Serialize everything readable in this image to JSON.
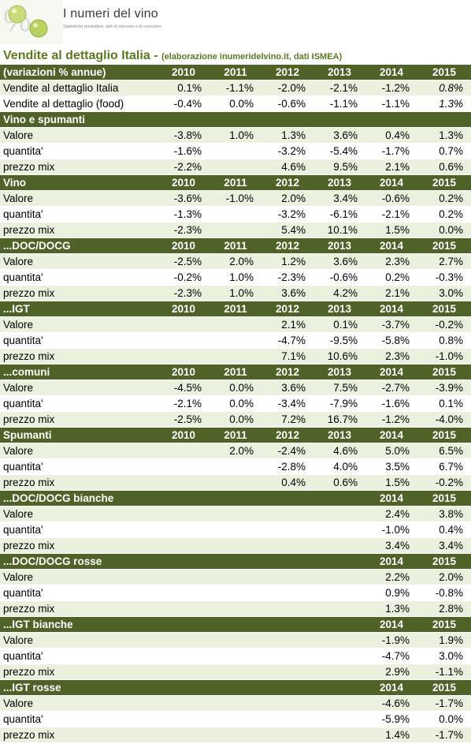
{
  "brand": {
    "name": "I numeri del vino",
    "tagline": "Statistiche produttive, dati di mercato e di consumo."
  },
  "title": {
    "main": "Vendite al dettaglio Italia - ",
    "sub": "(elaborazione inumeridelvino.it, dati ISMEA)"
  },
  "colors": {
    "header_bg": "#4f6228",
    "band_bg": "#ebf1de",
    "title_green": "#5b7a1e"
  },
  "table": {
    "rows": [
      {
        "type": "header",
        "label": "(variazioni % annue)",
        "cells": [
          "2010",
          "2011",
          "2012",
          "2013",
          "2014",
          "2015"
        ]
      },
      {
        "type": "data",
        "label": "Vendite al dettaglio Italia",
        "cells": [
          "0.1%",
          "-1.1%",
          "-2.0%",
          "-2.1%",
          "-1.2%",
          "0.8%"
        ],
        "italic_last": true
      },
      {
        "type": "data",
        "label": "Vendite al dettaglio (food)",
        "cells": [
          "-0.4%",
          "0.0%",
          "-0.6%",
          "-1.1%",
          "-1.1%",
          "1.3%"
        ],
        "italic_last": true
      },
      {
        "type": "header",
        "label": "Vino e spumanti",
        "cells": [
          "",
          "",
          "",
          "",
          "",
          ""
        ]
      },
      {
        "type": "data",
        "label": "Valore",
        "cells": [
          "-3.8%",
          "1.0%",
          "1.3%",
          "3.6%",
          "0.4%",
          "1.3%"
        ]
      },
      {
        "type": "data",
        "label": "quantita'",
        "cells": [
          "-1.6%",
          "",
          "-3.2%",
          "-5.4%",
          "-1.7%",
          "0.7%"
        ]
      },
      {
        "type": "data",
        "label": "prezzo mix",
        "cells": [
          "-2.2%",
          "",
          "4.6%",
          "9.5%",
          "2.1%",
          "0.6%"
        ]
      },
      {
        "type": "header",
        "label": "Vino",
        "cells": [
          "2010",
          "2011",
          "2012",
          "2013",
          "2014",
          "2015"
        ]
      },
      {
        "type": "data",
        "label": "Valore",
        "cells": [
          "-3.6%",
          "-1.0%",
          "2.0%",
          "3.4%",
          "-0.6%",
          "0.2%"
        ]
      },
      {
        "type": "data",
        "label": "quantita'",
        "cells": [
          "-1.3%",
          "",
          "-3.2%",
          "-6.1%",
          "-2.1%",
          "0.2%"
        ]
      },
      {
        "type": "data",
        "label": "prezzo mix",
        "cells": [
          "-2.3%",
          "",
          "5.4%",
          "10.1%",
          "1.5%",
          "0.0%"
        ]
      },
      {
        "type": "header",
        "label": "...DOC/DOCG",
        "cells": [
          "2010",
          "2011",
          "2012",
          "2013",
          "2014",
          "2015"
        ]
      },
      {
        "type": "data",
        "label": "Valore",
        "cells": [
          "-2.5%",
          "2.0%",
          "1.2%",
          "3.6%",
          "2.3%",
          "2.7%"
        ]
      },
      {
        "type": "data",
        "label": "quantita'",
        "cells": [
          "-0.2%",
          "1.0%",
          "-2.3%",
          "-0.6%",
          "0.2%",
          "-0.3%"
        ]
      },
      {
        "type": "data",
        "label": "prezzo mix",
        "cells": [
          "-2.3%",
          "1.0%",
          "3.6%",
          "4.2%",
          "2.1%",
          "3.0%"
        ]
      },
      {
        "type": "header",
        "label": "...IGT",
        "cells": [
          "2010",
          "2011",
          "2012",
          "2013",
          "2014",
          "2015"
        ]
      },
      {
        "type": "data",
        "label": "Valore",
        "cells": [
          "",
          "",
          "2.1%",
          "0.1%",
          "-3.7%",
          "-0.2%"
        ]
      },
      {
        "type": "data",
        "label": "quantita'",
        "cells": [
          "",
          "",
          "-4.7%",
          "-9.5%",
          "-5.8%",
          "0.8%"
        ]
      },
      {
        "type": "data",
        "label": "prezzo mix",
        "cells": [
          "",
          "",
          "7.1%",
          "10.6%",
          "2.3%",
          "-1.0%"
        ]
      },
      {
        "type": "header",
        "label": "...comuni",
        "cells": [
          "2010",
          "2011",
          "2012",
          "2013",
          "2014",
          "2015"
        ]
      },
      {
        "type": "data",
        "label": "Valore",
        "cells": [
          "-4.5%",
          "0.0%",
          "3.6%",
          "7.5%",
          "-2.7%",
          "-3.9%"
        ]
      },
      {
        "type": "data",
        "label": "quantita'",
        "cells": [
          "-2.1%",
          "0.0%",
          "-3.4%",
          "-7.9%",
          "-1.6%",
          "0.1%"
        ]
      },
      {
        "type": "data",
        "label": "prezzo mix",
        "cells": [
          "-2.5%",
          "0.0%",
          "7.2%",
          "16.7%",
          "-1.2%",
          "-4.0%"
        ]
      },
      {
        "type": "header",
        "label": "Spumanti",
        "cells": [
          "2010",
          "2011",
          "2012",
          "2013",
          "2014",
          "2015"
        ]
      },
      {
        "type": "data",
        "label": "Valore",
        "cells": [
          "",
          "2.0%",
          "-2.4%",
          "4.6%",
          "5.0%",
          "6.5%"
        ]
      },
      {
        "type": "data",
        "label": "quantita'",
        "cells": [
          "",
          "",
          "-2.8%",
          "4.0%",
          "3.5%",
          "6.7%"
        ]
      },
      {
        "type": "data",
        "label": "prezzo mix",
        "cells": [
          "",
          "",
          "0.4%",
          "0.6%",
          "1.5%",
          "-0.2%"
        ]
      },
      {
        "type": "header",
        "label": "...DOC/DOCG bianche",
        "cells": [
          "",
          "",
          "",
          "",
          "2014",
          "2015"
        ]
      },
      {
        "type": "data",
        "label": "Valore",
        "cells": [
          "",
          "",
          "",
          "",
          "2.4%",
          "3.8%"
        ]
      },
      {
        "type": "data",
        "label": "quantita'",
        "cells": [
          "",
          "",
          "",
          "",
          "-1.0%",
          "0.4%"
        ]
      },
      {
        "type": "data",
        "label": "prezzo mix",
        "cells": [
          "",
          "",
          "",
          "",
          "3.4%",
          "3.4%"
        ]
      },
      {
        "type": "header",
        "label": "...DOC/DOCG rosse",
        "cells": [
          "",
          "",
          "",
          "",
          "2014",
          "2015"
        ]
      },
      {
        "type": "data",
        "label": "Valore",
        "cells": [
          "",
          "",
          "",
          "",
          "2.2%",
          "2.0%"
        ]
      },
      {
        "type": "data",
        "label": "quantita'",
        "cells": [
          "",
          "",
          "",
          "",
          "0.9%",
          "-0.8%"
        ]
      },
      {
        "type": "data",
        "label": "prezzo mix",
        "cells": [
          "",
          "",
          "",
          "",
          "1.3%",
          "2.8%"
        ]
      },
      {
        "type": "header",
        "label": "...IGT bianche",
        "cells": [
          "",
          "",
          "",
          "",
          "2014",
          "2015"
        ]
      },
      {
        "type": "data",
        "label": "Valore",
        "cells": [
          "",
          "",
          "",
          "",
          "-1.9%",
          "1.9%"
        ]
      },
      {
        "type": "data",
        "label": "quantita'",
        "cells": [
          "",
          "",
          "",
          "",
          "-4.7%",
          "3.0%"
        ]
      },
      {
        "type": "data",
        "label": "prezzo mix",
        "cells": [
          "",
          "",
          "",
          "",
          "2.9%",
          "-1.1%"
        ]
      },
      {
        "type": "header",
        "label": "...IGT rosse",
        "cells": [
          "",
          "",
          "",
          "",
          "2014",
          "2015"
        ]
      },
      {
        "type": "data",
        "label": "Valore",
        "cells": [
          "",
          "",
          "",
          "",
          "-4.6%",
          "-1.7%"
        ]
      },
      {
        "type": "data",
        "label": "quantita'",
        "cells": [
          "",
          "",
          "",
          "",
          "-5.9%",
          "0.0%"
        ]
      },
      {
        "type": "data",
        "label": "prezzo mix",
        "cells": [
          "",
          "",
          "",
          "",
          "1.4%",
          "-1.7%"
        ]
      }
    ]
  }
}
